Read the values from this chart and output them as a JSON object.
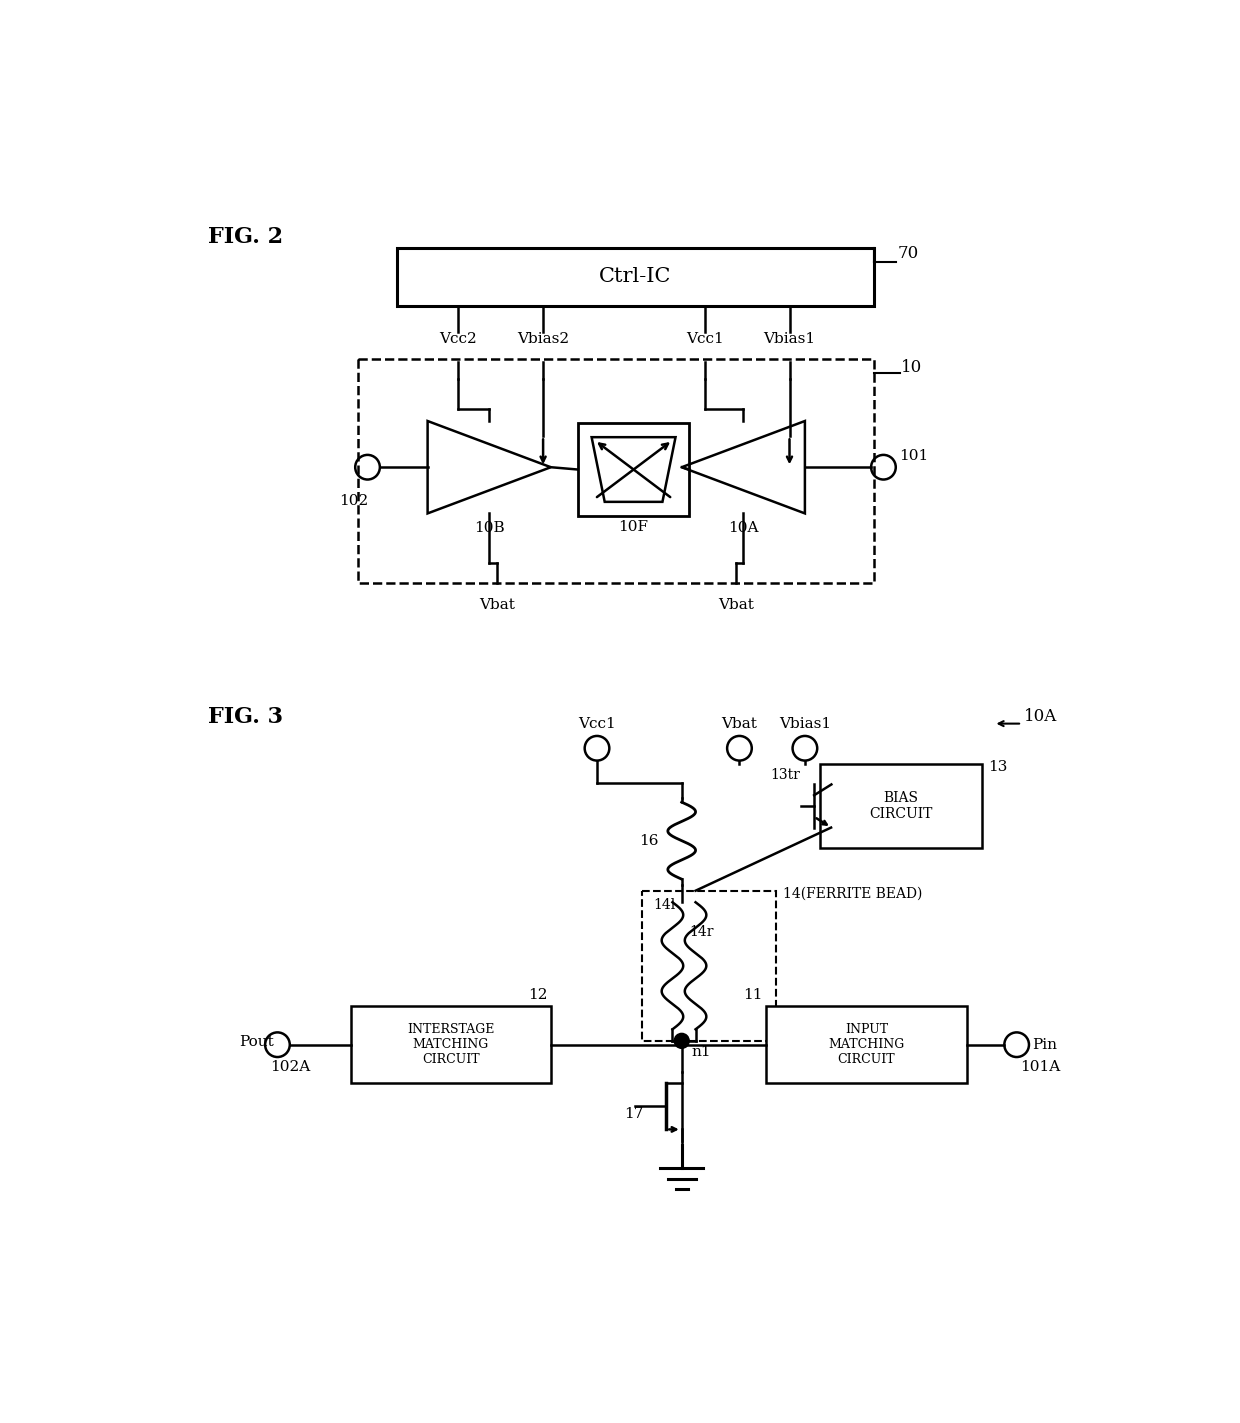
{
  "fig_width": 12.4,
  "fig_height": 14.23,
  "bg_color": "#ffffff",
  "line_color": "#000000",
  "fig2_label": "FIG. 2",
  "fig3_label": "FIG. 3",
  "ctrl_ic_label": "Ctrl-IC",
  "label_70": "70",
  "label_10": "10",
  "label_101": "101",
  "label_102": "102",
  "label_10A": "10A",
  "label_10B": "10B",
  "label_10F": "10F",
  "label_Vcc2": "Vcc2",
  "label_Vbias2": "Vbias2",
  "label_Vcc1": "Vcc1",
  "label_Vbias1": "Vbias1",
  "label_Vbat_left": "Vbat",
  "label_Vbat_right": "Vbat",
  "label_12": "12",
  "label_13": "13",
  "label_13tr": "13tr",
  "label_14": "14",
  "label_14_paren": "(FERRITE BEAD)",
  "label_14l": "14l",
  "label_14r": "14r",
  "label_16": "16",
  "label_17": "17",
  "label_11": "11",
  "label_Pout": "Pout",
  "label_102A": "102A",
  "label_Pin": "Pin",
  "label_101A": "101A",
  "label_10A_fig3": "10A",
  "label_Vcc1_fig3": "Vcc1",
  "label_Vbat_fig3": "Vbat",
  "label_Vbias1_fig3": "Vbias1",
  "label_bias_circuit": "BIAS\nCIRCUIT",
  "label_interstage": "INTERSTAGE\nMATCHING\nCIRCUIT",
  "label_input_matching": "INPUT\nMATCHING\nCIRCUIT",
  "label_n1": "n1"
}
